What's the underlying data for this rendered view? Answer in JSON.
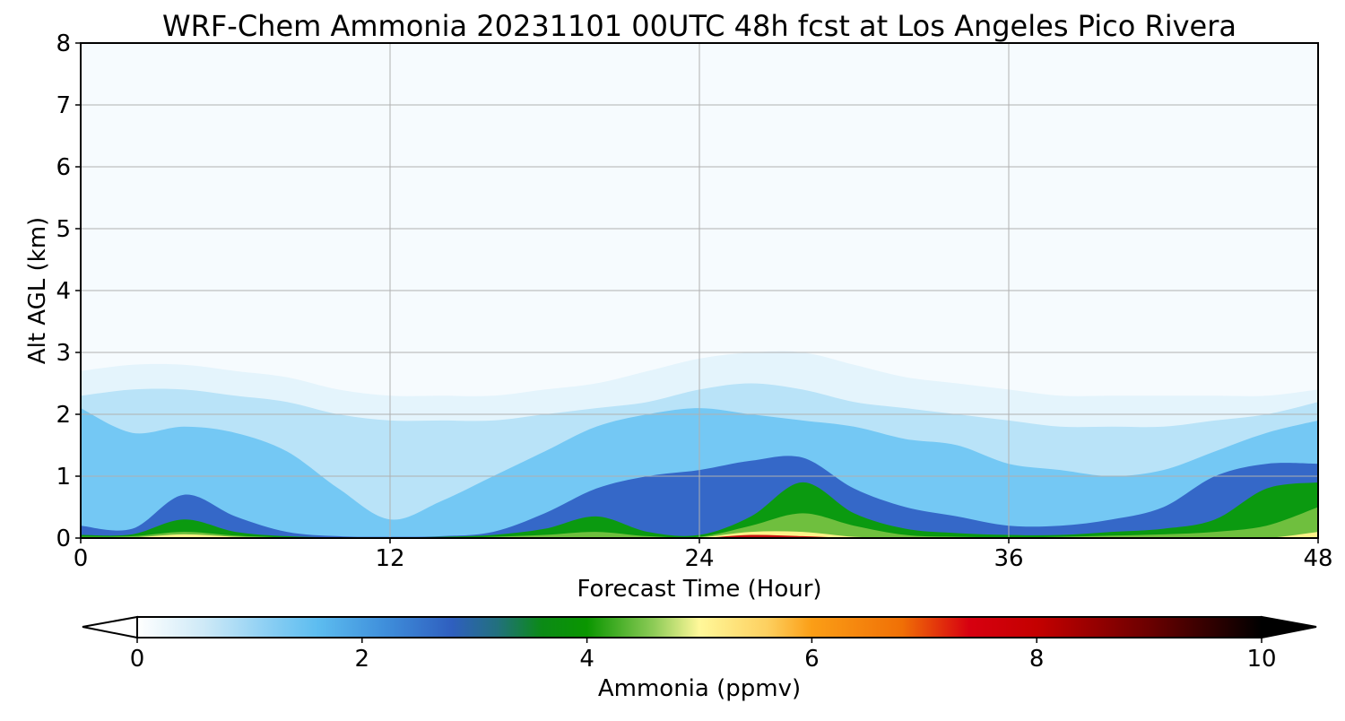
{
  "chart_data": {
    "type": "heatmap",
    "title": "WRF-Chem Ammonia  20231101 00UTC 48h fcst at Los Angeles Pico Rivera",
    "xlabel": "Forecast Time (Hour)",
    "ylabel": "Alt AGL (km)",
    "xlim": [
      0,
      48
    ],
    "ylim": [
      0,
      8
    ],
    "xticks": [
      0,
      12,
      24,
      36,
      48
    ],
    "yticks": [
      0,
      1,
      2,
      3,
      4,
      5,
      6,
      7,
      8
    ],
    "grid": true,
    "colorbar": {
      "label": "Ammonia  (ppmv)",
      "ticks": [
        0,
        2,
        4,
        6,
        8,
        10
      ],
      "range": [
        0,
        10
      ],
      "extend": "both",
      "orientation": "horizontal"
    },
    "contour_levels_ppmv": [
      0.25,
      1.0,
      2.0,
      3.0,
      4.0,
      5.0,
      6.0,
      8.0
    ],
    "level_tops_km": {
      "hours": [
        0,
        2,
        4,
        6,
        8,
        10,
        12,
        14,
        16,
        18,
        20,
        22,
        24,
        26,
        28,
        30,
        32,
        34,
        36,
        38,
        40,
        42,
        44,
        46,
        48
      ],
      "0.25": [
        2.7,
        2.8,
        2.8,
        2.7,
        2.6,
        2.4,
        2.3,
        2.3,
        2.3,
        2.4,
        2.5,
        2.7,
        2.9,
        3.0,
        3.0,
        2.8,
        2.6,
        2.5,
        2.4,
        2.3,
        2.3,
        2.3,
        2.3,
        2.3,
        2.4
      ],
      "1.0": [
        2.3,
        2.4,
        2.4,
        2.3,
        2.2,
        2.0,
        1.9,
        1.9,
        1.9,
        2.0,
        2.1,
        2.2,
        2.4,
        2.5,
        2.4,
        2.2,
        2.1,
        2.0,
        1.9,
        1.8,
        1.8,
        1.8,
        1.9,
        2.0,
        2.2
      ],
      "2.0": [
        2.1,
        1.7,
        1.8,
        1.7,
        1.4,
        0.8,
        0.3,
        0.6,
        1.0,
        1.4,
        1.8,
        2.0,
        2.1,
        2.0,
        1.9,
        1.8,
        1.6,
        1.5,
        1.2,
        1.1,
        1.0,
        1.1,
        1.4,
        1.7,
        1.9
      ],
      "3.0": [
        0.2,
        0.15,
        0.7,
        0.35,
        0.1,
        0.03,
        0.02,
        0.03,
        0.1,
        0.4,
        0.8,
        1.0,
        1.1,
        1.25,
        1.3,
        0.8,
        0.5,
        0.35,
        0.2,
        0.2,
        0.3,
        0.5,
        1.0,
        1.2,
        1.2
      ],
      "4.0": [
        0.05,
        0.06,
        0.3,
        0.1,
        0.03,
        0.01,
        0.01,
        0.02,
        0.05,
        0.15,
        0.35,
        0.1,
        0.05,
        0.35,
        0.9,
        0.4,
        0.15,
        0.08,
        0.05,
        0.05,
        0.1,
        0.15,
        0.3,
        0.8,
        0.9
      ],
      "5.0": [
        0.02,
        0.03,
        0.1,
        0.04,
        0.01,
        0.0,
        0.0,
        0.0,
        0.02,
        0.05,
        0.1,
        0.03,
        0.02,
        0.2,
        0.4,
        0.2,
        0.05,
        0.02,
        0.01,
        0.02,
        0.04,
        0.06,
        0.1,
        0.2,
        0.5
      ],
      "6.0": [
        0.01,
        0.01,
        0.06,
        0.02,
        0.0,
        0.0,
        0.0,
        0.0,
        0.0,
        0.0,
        0.0,
        0.0,
        0.01,
        0.1,
        0.1,
        0.02,
        0.0,
        0.0,
        0.0,
        0.0,
        0.0,
        0.0,
        0.0,
        0.0,
        0.1
      ],
      "8.0": [
        0.0,
        0.0,
        0.0,
        0.0,
        0.0,
        0.0,
        0.0,
        0.0,
        0.0,
        0.0,
        0.0,
        0.0,
        0.0,
        0.05,
        0.03,
        0.0,
        0.0,
        0.0,
        0.0,
        0.0,
        0.0,
        0.0,
        0.0,
        0.0,
        0.0
      ]
    },
    "colorscale": [
      [
        "0",
        "#ffffff"
      ],
      [
        "0.6",
        "#cde9f7"
      ],
      [
        "1.2",
        "#87cdf3"
      ],
      [
        "1.6",
        "#5dbdf0"
      ],
      [
        "2.2",
        "#3f8fdb"
      ],
      [
        "2.8",
        "#2f5fbf"
      ],
      [
        "3.2",
        "#22707e"
      ],
      [
        "3.6",
        "#0b8a16"
      ],
      [
        "4.0",
        "#0a9600"
      ],
      [
        "4.6",
        "#8fcc58"
      ],
      [
        "5.0",
        "#fff89a"
      ],
      [
        "5.6",
        "#fdd060"
      ],
      [
        "6.0",
        "#fb9e16"
      ],
      [
        "6.8",
        "#f07006"
      ],
      [
        "7.4",
        "#d70010"
      ],
      [
        "8.0",
        "#c40000"
      ],
      [
        "9.0",
        "#6b0000"
      ],
      [
        "10.0",
        "#000000"
      ]
    ],
    "level_colors": {
      "background": "#f6fbfe",
      "0.25": "#e4f4fc",
      "1.0": "#b9e3f8",
      "2.0": "#74c8f4",
      "3.0": "#3568c8",
      "4.0": "#0b9a10",
      "5.0": "#6fbf3e",
      "6.0": "#fff38a",
      "8.0": "#c81010"
    }
  }
}
